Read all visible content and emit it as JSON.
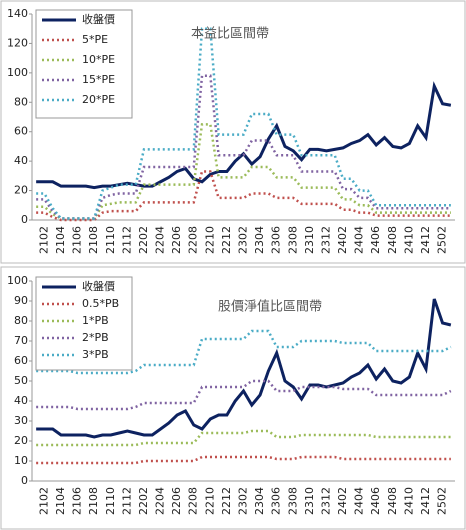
{
  "chart_data": [
    {
      "type": "line",
      "title": "本益比區間帶",
      "legend": "upper left",
      "categories": [
        null,
        "2102",
        null,
        "2104",
        null,
        "2106",
        null,
        "2108",
        null,
        "2110",
        null,
        "2112",
        null,
        "2202",
        null,
        "2204",
        null,
        "2206",
        null,
        "2208",
        null,
        "2210",
        null,
        "2212",
        null,
        "2302",
        null,
        "2304",
        null,
        "2306",
        null,
        "2308",
        null,
        "2310",
        null,
        "2312",
        null,
        "2402",
        null,
        "2404",
        null,
        "2406",
        null,
        "2408",
        null,
        "2410",
        null,
        "2412",
        null,
        "2502",
        null
      ],
      "ylim": [
        0,
        140
      ],
      "yticks": [
        0,
        20,
        40,
        60,
        80,
        100,
        120,
        140
      ],
      "series": [
        {
          "name": "收盤價",
          "color": "#0d2260",
          "values": [
            26,
            26,
            26,
            23,
            23,
            23,
            23,
            22,
            23,
            23,
            24,
            25,
            24,
            23,
            23,
            26,
            29,
            33,
            35,
            28,
            26,
            31,
            33,
            33,
            40,
            45,
            38,
            43,
            55,
            64,
            50,
            47,
            41,
            48,
            48,
            47,
            48,
            49,
            52,
            54,
            58,
            51,
            56,
            50,
            49,
            52,
            64,
            56,
            91,
            79,
            78
          ]
        },
        {
          "name": "5*PE",
          "color": "#c0504d",
          "values": [
            5,
            5,
            2,
            0,
            0,
            0,
            0,
            0,
            5,
            6,
            6,
            6,
            6,
            12,
            12,
            12,
            12,
            12,
            12,
            12,
            33,
            33,
            15,
            15,
            15,
            15,
            18,
            18,
            18,
            15,
            15,
            15,
            11,
            11,
            11,
            11,
            11,
            7,
            7,
            5,
            5,
            3,
            3,
            3,
            3,
            3,
            3,
            3,
            3,
            3,
            3
          ]
        },
        {
          "name": "10*PE",
          "color": "#9bbb59",
          "values": [
            9,
            9,
            4,
            1,
            1,
            1,
            1,
            1,
            10,
            11,
            12,
            12,
            12,
            24,
            24,
            24,
            24,
            24,
            24,
            24,
            65,
            65,
            29,
            29,
            29,
            29,
            36,
            36,
            36,
            29,
            29,
            29,
            22,
            22,
            22,
            22,
            22,
            14,
            14,
            10,
            10,
            5,
            5,
            5,
            5,
            5,
            5,
            5,
            5,
            5,
            5
          ]
        },
        {
          "name": "15*PE",
          "color": "#8064a2",
          "values": [
            14,
            14,
            6,
            1,
            1,
            1,
            1,
            1,
            15,
            17,
            18,
            18,
            18,
            36,
            36,
            36,
            36,
            36,
            36,
            36,
            98,
            98,
            44,
            44,
            44,
            44,
            54,
            54,
            54,
            44,
            44,
            44,
            33,
            33,
            33,
            33,
            33,
            21,
            21,
            15,
            15,
            8,
            8,
            8,
            8,
            8,
            8,
            8,
            8,
            8,
            8
          ]
        },
        {
          "name": "20*PE",
          "color": "#4bacc6",
          "values": [
            18,
            18,
            8,
            1,
            1,
            1,
            1,
            1,
            20,
            22,
            24,
            24,
            24,
            48,
            48,
            48,
            48,
            48,
            48,
            48,
            130,
            130,
            58,
            58,
            58,
            58,
            72,
            72,
            72,
            58,
            58,
            58,
            44,
            44,
            44,
            44,
            44,
            28,
            28,
            20,
            20,
            10,
            10,
            10,
            10,
            10,
            10,
            10,
            10,
            10,
            10
          ]
        }
      ]
    },
    {
      "type": "line",
      "title": "股價淨值比區間帶",
      "legend": "upper left",
      "categories": [
        null,
        "2102",
        null,
        "2104",
        null,
        "2106",
        null,
        "2108",
        null,
        "2110",
        null,
        "2112",
        null,
        "2202",
        null,
        "2204",
        null,
        "2206",
        null,
        "2208",
        null,
        "2210",
        null,
        "2212",
        null,
        "2302",
        null,
        "2304",
        null,
        "2306",
        null,
        "2308",
        null,
        "2310",
        null,
        "2312",
        null,
        "2402",
        null,
        "2404",
        null,
        "2406",
        null,
        "2408",
        null,
        "2410",
        null,
        "2412",
        null,
        "2502",
        null
      ],
      "ylim": [
        0,
        100
      ],
      "yticks": [
        0,
        10,
        20,
        30,
        40,
        50,
        60,
        70,
        80,
        90,
        100
      ],
      "series": [
        {
          "name": "收盤價",
          "color": "#0d2260",
          "values": [
            26,
            26,
            26,
            23,
            23,
            23,
            23,
            22,
            23,
            23,
            24,
            25,
            24,
            23,
            23,
            26,
            29,
            33,
            35,
            28,
            26,
            31,
            33,
            33,
            40,
            45,
            38,
            43,
            55,
            64,
            50,
            47,
            41,
            48,
            48,
            47,
            48,
            49,
            52,
            54,
            58,
            51,
            56,
            50,
            49,
            52,
            64,
            56,
            91,
            79,
            78
          ]
        },
        {
          "name": "0.5*PB",
          "color": "#c0504d",
          "values": [
            9,
            9,
            9,
            9,
            9,
            9,
            9,
            9,
            9,
            9,
            9,
            9,
            9,
            10,
            10,
            10,
            10,
            10,
            10,
            10,
            12,
            12,
            12,
            12,
            12,
            12,
            12,
            12,
            12,
            11,
            11,
            11,
            12,
            12,
            12,
            12,
            12,
            11,
            11,
            11,
            11,
            11,
            11,
            11,
            11,
            11,
            11,
            11,
            11,
            11,
            11
          ]
        },
        {
          "name": "1*PB",
          "color": "#9bbb59",
          "values": [
            18,
            18,
            18,
            18,
            18,
            18,
            18,
            18,
            18,
            18,
            18,
            18,
            18,
            19,
            19,
            19,
            19,
            19,
            19,
            19,
            24,
            24,
            24,
            24,
            24,
            24,
            25,
            25,
            25,
            22,
            22,
            22,
            23,
            23,
            23,
            23,
            23,
            23,
            23,
            23,
            23,
            22,
            22,
            22,
            22,
            22,
            22,
            22,
            22,
            22,
            22
          ]
        },
        {
          "name": "2*PB",
          "color": "#8064a2",
          "values": [
            37,
            37,
            37,
            37,
            37,
            36,
            36,
            36,
            36,
            36,
            36,
            36,
            37,
            39,
            39,
            39,
            39,
            39,
            39,
            39,
            47,
            47,
            47,
            47,
            47,
            47,
            50,
            50,
            50,
            45,
            45,
            45,
            47,
            47,
            47,
            47,
            47,
            46,
            46,
            46,
            46,
            43,
            43,
            43,
            43,
            43,
            43,
            43,
            43,
            43,
            45
          ]
        },
        {
          "name": "3*PB",
          "color": "#4bacc6",
          "values": [
            55,
            55,
            55,
            55,
            55,
            54,
            54,
            54,
            54,
            54,
            54,
            54,
            55,
            58,
            58,
            58,
            58,
            58,
            58,
            58,
            71,
            71,
            71,
            71,
            71,
            71,
            75,
            75,
            75,
            67,
            67,
            67,
            70,
            70,
            70,
            70,
            70,
            69,
            69,
            69,
            69,
            65,
            65,
            65,
            65,
            65,
            65,
            65,
            65,
            65,
            67
          ]
        }
      ]
    }
  ]
}
